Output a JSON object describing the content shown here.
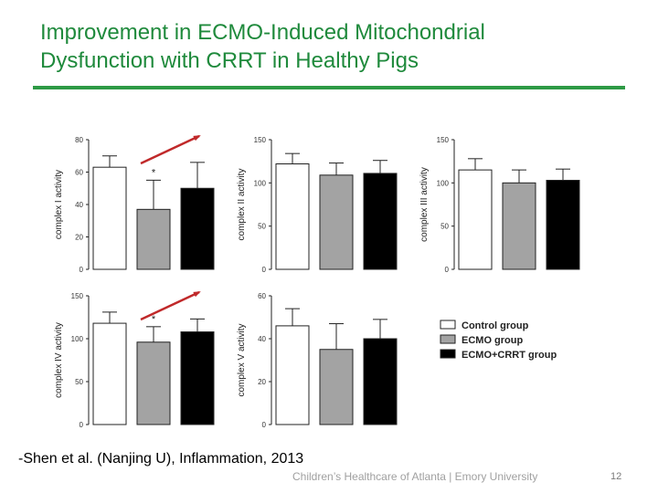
{
  "header": {
    "title_line1": "Improvement in ECMO-Induced Mitochondrial",
    "title_line2": "Dysfunction with CRRT in Healthy Pigs"
  },
  "citation": "-Shen et al. (Nanjing U), Inflammation, 2013",
  "footer": "Children’s Healthcare of Atlanta | Emory University",
  "page_number": "12",
  "colors": {
    "title": "#1f8a3c",
    "rule": "#2e9a45",
    "arrow": "#c0292a",
    "control": "#ffffff",
    "ecmo": "#a3a3a3",
    "ecmo_crrt": "#000000"
  },
  "legend": [
    {
      "label": "Control group",
      "color": "#ffffff"
    },
    {
      "label": "ECMO group",
      "color": "#a3a3a3"
    },
    {
      "label": "ECMO+CRRT group",
      "color": "#000000"
    }
  ],
  "chart_data": [
    {
      "type": "bar",
      "ylabel": "complex I activity",
      "ylim": [
        0,
        80
      ],
      "yticks": [
        0,
        20,
        40,
        60,
        80
      ],
      "categories": [
        "Control group",
        "ECMO group",
        "ECMO+CRRT group"
      ],
      "values": [
        63,
        37,
        50
      ],
      "errors": [
        7,
        18,
        16
      ],
      "significance": [
        "",
        "*",
        ""
      ],
      "trend_arrow": true
    },
    {
      "type": "bar",
      "ylabel": "complex II activity",
      "ylim": [
        0,
        150
      ],
      "yticks": [
        0,
        50,
        100,
        150
      ],
      "categories": [
        "Control group",
        "ECMO group",
        "ECMO+CRRT group"
      ],
      "values": [
        122,
        109,
        111
      ],
      "errors": [
        12,
        14,
        15
      ],
      "significance": [
        "",
        "",
        ""
      ],
      "trend_arrow": false
    },
    {
      "type": "bar",
      "ylabel": "complex III activity",
      "ylim": [
        0,
        150
      ],
      "yticks": [
        0,
        50,
        100,
        150
      ],
      "categories": [
        "Control group",
        "ECMO group",
        "ECMO+CRRT group"
      ],
      "values": [
        115,
        100,
        103
      ],
      "errors": [
        13,
        15,
        13
      ],
      "significance": [
        "",
        "",
        ""
      ],
      "trend_arrow": false
    },
    {
      "type": "bar",
      "ylabel": "complex IV activity",
      "ylim": [
        0,
        150
      ],
      "yticks": [
        0,
        50,
        100,
        150
      ],
      "categories": [
        "Control group",
        "ECMO group",
        "ECMO+CRRT group"
      ],
      "values": [
        118,
        96,
        108
      ],
      "errors": [
        13,
        18,
        15
      ],
      "significance": [
        "",
        "*",
        ""
      ],
      "trend_arrow": true
    },
    {
      "type": "bar",
      "ylabel": "complex V activity",
      "ylim": [
        0,
        60
      ],
      "yticks": [
        0,
        20,
        40,
        60
      ],
      "categories": [
        "Control group",
        "ECMO group",
        "ECMO+CRRT group"
      ],
      "values": [
        46,
        35,
        40
      ],
      "errors": [
        8,
        12,
        9
      ],
      "significance": [
        "",
        "",
        ""
      ],
      "trend_arrow": false
    }
  ]
}
